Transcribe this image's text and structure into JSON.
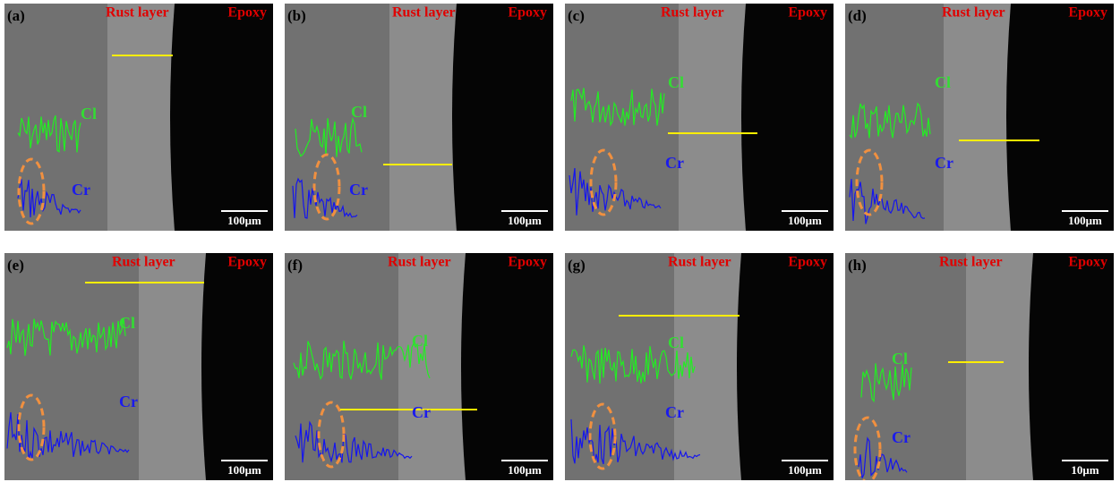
{
  "panels": [
    {
      "label": "(a)",
      "rust_layer": "Rust layer",
      "epoxy": "Epoxy",
      "cl": "Cl",
      "cr": "Cr",
      "scale": "100μm"
    },
    {
      "label": "(b)",
      "rust_layer": "Rust layer",
      "epoxy": "Epoxy",
      "cl": "Cl",
      "cr": "Cr",
      "scale": "100μm"
    },
    {
      "label": "(c)",
      "rust_layer": "Rust layer",
      "epoxy": "Epoxy",
      "cl": "Cl",
      "cr": "Cr",
      "scale": "100μm"
    },
    {
      "label": "(d)",
      "rust_layer": "Rust layer",
      "epoxy": "Epoxy",
      "cl": "Cl",
      "cr": "Cr",
      "scale": "100μm"
    },
    {
      "label": "(e)",
      "rust_layer": "Rust layer",
      "epoxy": "Epoxy",
      "cl": "Cl",
      "cr": "Cr",
      "scale": "100μm"
    },
    {
      "label": "(f)",
      "rust_layer": "Rust layer",
      "epoxy": "Epoxy",
      "cl": "Cl",
      "cr": "Cr",
      "scale": "100μm"
    },
    {
      "label": "(g)",
      "rust_layer": "Rust layer",
      "epoxy": "Epoxy",
      "cl": "Cl",
      "cr": "Cr",
      "scale": "100μm"
    },
    {
      "label": "(h)",
      "rust_layer": "Rust layer",
      "epoxy": "Epoxy",
      "cl": "Cl",
      "cr": "Cr",
      "scale": "10μm"
    }
  ]
}
